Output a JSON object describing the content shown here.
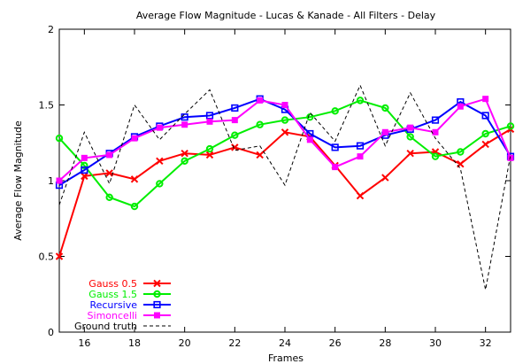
{
  "chart_data": {
    "type": "line",
    "title": "Average Flow Magnitude - Lucas & Kanade - All Filters - Delay",
    "xlabel": "Frames",
    "ylabel": "Average Flow Magnitude",
    "xlim": [
      15,
      33
    ],
    "ylim": [
      0,
      2
    ],
    "xticks": [
      16,
      18,
      20,
      22,
      24,
      26,
      28,
      30,
      32
    ],
    "yticks": [
      0,
      0.5,
      1,
      1.5,
      2
    ],
    "ytick_labels": [
      "0",
      "0.5",
      "1",
      "1.5",
      "2"
    ],
    "grid": false,
    "legend_position": "bottom-left",
    "x": [
      15,
      16,
      17,
      18,
      19,
      20,
      21,
      22,
      23,
      24,
      25,
      26,
      27,
      28,
      29,
      30,
      31,
      32,
      33
    ],
    "series": [
      {
        "name": "Gauss 0.5",
        "color": "#ff0000",
        "marker": "x-icon",
        "values": [
          0.5,
          1.03,
          1.05,
          1.01,
          1.13,
          1.18,
          1.17,
          1.22,
          1.17,
          1.32,
          1.29,
          1.1,
          0.9,
          1.02,
          1.18,
          1.19,
          1.11,
          1.24,
          1.34
        ]
      },
      {
        "name": "Gauss 1.5",
        "color": "#00ee00",
        "marker": "circle-icon",
        "values": [
          1.28,
          1.1,
          0.89,
          0.83,
          0.98,
          1.13,
          1.21,
          1.3,
          1.37,
          1.4,
          1.42,
          1.46,
          1.53,
          1.48,
          1.29,
          1.16,
          1.19,
          1.31,
          1.36
        ]
      },
      {
        "name": "Recursive",
        "color": "#0000ff",
        "marker": "square-icon",
        "values": [
          0.97,
          1.07,
          1.18,
          1.29,
          1.36,
          1.42,
          1.43,
          1.48,
          1.54,
          1.47,
          1.31,
          1.22,
          1.23,
          1.3,
          1.34,
          1.4,
          1.52,
          1.43,
          1.16
        ]
      },
      {
        "name": "Simoncelli",
        "color": "#ff00ff",
        "marker": "filled-square-icon",
        "values": [
          1.0,
          1.15,
          1.17,
          1.28,
          1.35,
          1.37,
          1.39,
          1.4,
          1.53,
          1.5,
          1.27,
          1.09,
          1.16,
          1.32,
          1.35,
          1.32,
          1.49,
          1.54,
          1.15
        ]
      },
      {
        "name": "Ground truth",
        "color": "#000000",
        "marker": "none",
        "dash": true,
        "values": [
          0.84,
          1.32,
          0.98,
          1.5,
          1.27,
          1.44,
          1.6,
          1.2,
          1.23,
          0.97,
          1.45,
          1.26,
          1.63,
          1.23,
          1.58,
          1.28,
          1.08,
          0.28,
          1.17
        ]
      }
    ]
  }
}
